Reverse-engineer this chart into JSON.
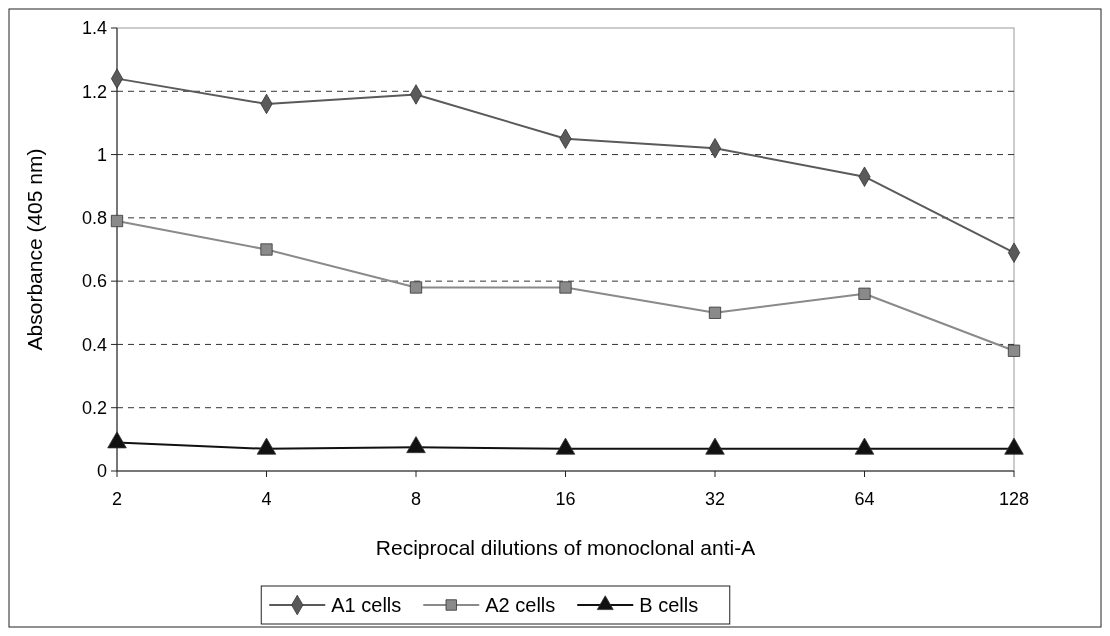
{
  "chart_data": {
    "type": "line",
    "xlabel": "Reciprocal dilutions of monoclonal anti-A",
    "ylabel": "Absorbance (405 nm)",
    "categories": [
      "2",
      "4",
      "8",
      "16",
      "32",
      "64",
      "128"
    ],
    "series": [
      {
        "name": "A1 cells",
        "color": "#5a5a5a",
        "marker": "diamond",
        "values": [
          1.24,
          1.16,
          1.19,
          1.05,
          1.02,
          0.93,
          0.69
        ]
      },
      {
        "name": "A2 cells",
        "color": "#8a8a8a",
        "marker": "square",
        "values": [
          0.79,
          0.7,
          0.58,
          0.58,
          0.5,
          0.56,
          0.38
        ]
      },
      {
        "name": "B cells",
        "color": "#111111",
        "marker": "triangle",
        "values": [
          0.09,
          0.07,
          0.075,
          0.07,
          0.07,
          0.07,
          0.07
        ]
      }
    ],
    "ylim": [
      0,
      1.4
    ],
    "yticks": [
      0,
      0.2,
      0.4,
      0.6,
      0.8,
      1,
      1.2,
      1.4
    ],
    "grid": "y",
    "legend": "bottom",
    "line_style": "solid"
  }
}
